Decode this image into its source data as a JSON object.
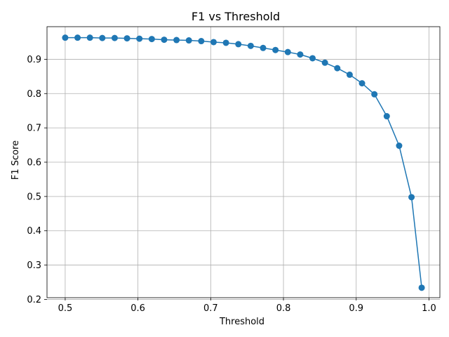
{
  "chart_data": {
    "type": "line",
    "title": "F1 vs Threshold",
    "xlabel": "Threshold",
    "ylabel": "F1 Score",
    "xlim": [
      0.475,
      1.015
    ],
    "ylim": [
      0.205,
      0.995
    ],
    "xticks": [
      0.5,
      0.6,
      0.7,
      0.8,
      0.9,
      1.0
    ],
    "xtick_labels": [
      "0.5",
      "0.6",
      "0.7",
      "0.8",
      "0.9",
      "1.0"
    ],
    "yticks": [
      0.2,
      0.3,
      0.4,
      0.5,
      0.6,
      0.7,
      0.8,
      0.9
    ],
    "ytick_labels": [
      "0.2",
      "0.3",
      "0.4",
      "0.5",
      "0.6",
      "0.7",
      "0.8",
      "0.9"
    ],
    "grid": true,
    "legend": "none",
    "series": [
      {
        "color": "#1f77b4",
        "marker": "circle",
        "x": [
          0.5,
          0.517,
          0.534,
          0.551,
          0.568,
          0.585,
          0.602,
          0.619,
          0.636,
          0.653,
          0.67,
          0.687,
          0.704,
          0.721,
          0.738,
          0.755,
          0.772,
          0.789,
          0.806,
          0.823,
          0.84,
          0.857,
          0.874,
          0.891,
          0.908,
          0.925,
          0.942,
          0.959,
          0.976,
          0.99
        ],
        "y": [
          0.963,
          0.963,
          0.963,
          0.962,
          0.962,
          0.961,
          0.96,
          0.959,
          0.957,
          0.956,
          0.955,
          0.953,
          0.95,
          0.948,
          0.944,
          0.939,
          0.933,
          0.927,
          0.921,
          0.914,
          0.903,
          0.89,
          0.874,
          0.855,
          0.83,
          0.798,
          0.734,
          0.648,
          0.498,
          0.234
        ]
      }
    ]
  }
}
